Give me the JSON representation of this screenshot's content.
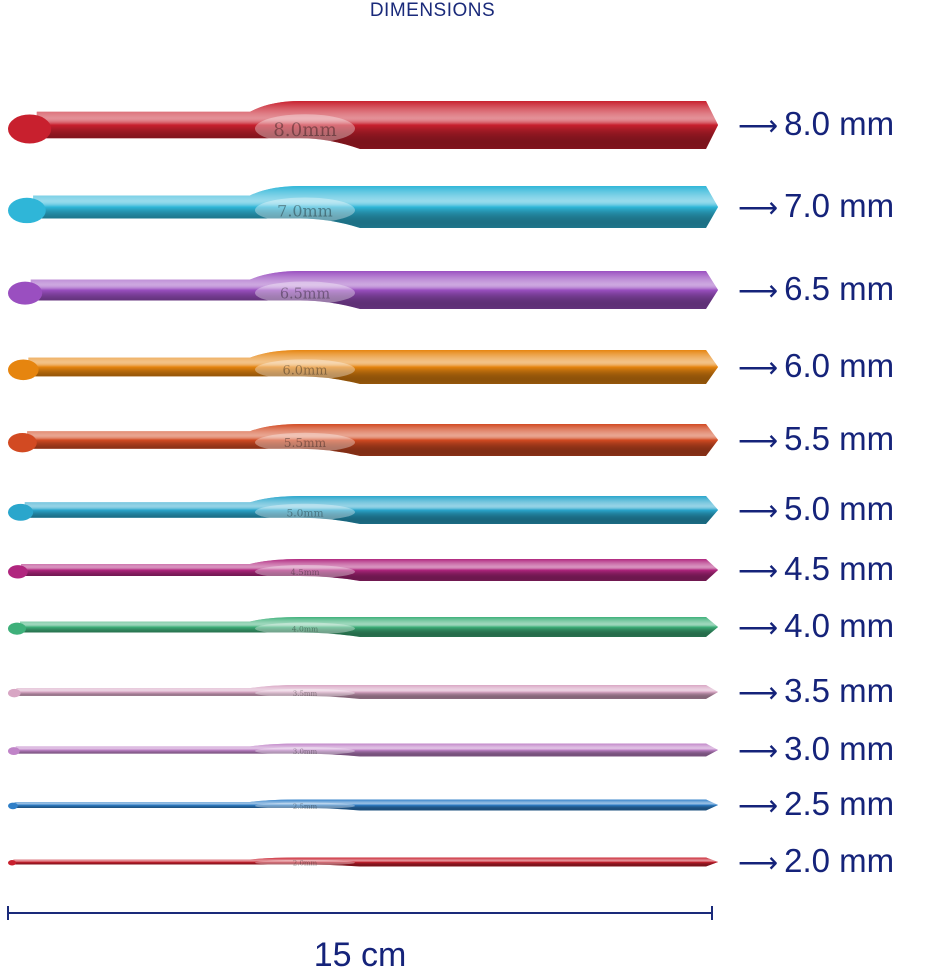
{
  "title": "DIMENSIONS",
  "arrow": "⟶",
  "hooks": [
    {
      "size": "8.0 mm",
      "engraving": "8.0mm",
      "color": "#c8202e"
    },
    {
      "size": "7.0 mm",
      "engraving": "7.0mm",
      "color": "#2fb6d8"
    },
    {
      "size": "6.5 mm",
      "engraving": "6.5mm",
      "color": "#9a4fc0"
    },
    {
      "size": "6.0 mm",
      "engraving": "6.0mm",
      "color": "#e6850f"
    },
    {
      "size": "5.5 mm",
      "engraving": "5.5mm",
      "color": "#d24a22"
    },
    {
      "size": "5.0 mm",
      "engraving": "5.0mm",
      "color": "#2aa6cc"
    },
    {
      "size": "4.5 mm",
      "engraving": "4.5mm",
      "color": "#b0267e"
    },
    {
      "size": "4.0 mm",
      "engraving": "4.0mm",
      "color": "#3eb07a"
    },
    {
      "size": "3.5 mm",
      "engraving": "3.5mm",
      "color": "#d8a6c4"
    },
    {
      "size": "3.0 mm",
      "engraving": "3.0mm",
      "color": "#c084c8"
    },
    {
      "size": "2.5 mm",
      "engraving": "2.5mm",
      "color": "#2f7fc8"
    },
    {
      "size": "2.0 mm",
      "engraving": "2.0mm",
      "color": "#c8202e"
    }
  ],
  "length_label": "15 cm",
  "text_color": "#15237a"
}
